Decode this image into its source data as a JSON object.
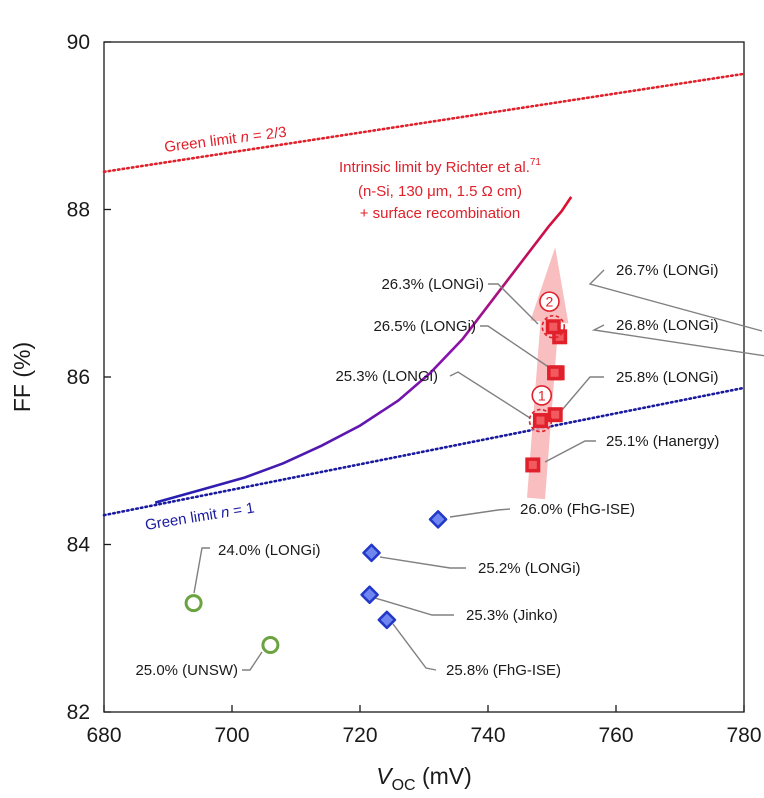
{
  "chart_data": {
    "type": "scatter",
    "xlabel": {
      "main": "V",
      "sub": "OC",
      "unit": " (mV)"
    },
    "ylabel": "FF (%)",
    "xlim": [
      680,
      780
    ],
    "ylim": [
      82,
      90
    ],
    "xticks": [
      680,
      700,
      720,
      740,
      760,
      780
    ],
    "yticks": [
      82,
      84,
      86,
      88,
      90
    ],
    "colors": {
      "red": "#e0202a",
      "blue": "#2238c8",
      "navy": "#1a1aa0",
      "green": "#6aa340",
      "arrow": "#f7b3b5",
      "leader": "#808080"
    },
    "lines": [
      {
        "name": "Green limit n = 2/3",
        "label": "Green limit ",
        "label_n": "n",
        "label_rest": " = 2/3",
        "style": "dotted",
        "color": "#e0202a",
        "points": [
          [
            680,
            88.45
          ],
          [
            780,
            89.62
          ]
        ]
      },
      {
        "name": "Green limit n = 1",
        "label": "Green limit ",
        "label_n": "n",
        "label_rest": " = 1",
        "style": "dotted",
        "color": "#1a1aa0",
        "points": [
          [
            680,
            84.35
          ],
          [
            780,
            85.87
          ]
        ]
      },
      {
        "name": "Intrinsic limit",
        "style": "solid",
        "color_start": "#2020b0",
        "color_end": "#e0102a",
        "points": [
          [
            688,
            84.5
          ],
          [
            695,
            84.65
          ],
          [
            702,
            84.8
          ],
          [
            708,
            84.97
          ],
          [
            714,
            85.18
          ],
          [
            720,
            85.42
          ],
          [
            726,
            85.72
          ],
          [
            731,
            86.05
          ],
          [
            736,
            86.45
          ],
          [
            740,
            86.85
          ],
          [
            744,
            87.25
          ],
          [
            747,
            87.55
          ],
          [
            749.5,
            87.8
          ],
          [
            751.5,
            87.98
          ],
          [
            753,
            88.15
          ]
        ]
      }
    ],
    "intrinsic_label": {
      "line1": "Intrinsic limit by Richter et al.",
      "line1_sup": "71",
      "line2": "(n-Si, 130 μm, 1.5 Ω cm)",
      "line3": "+ surface recombination"
    },
    "arrow": {
      "from": [
        747.5,
        84.55
      ],
      "to": [
        750.5,
        87.55
      ]
    },
    "points": [
      {
        "label": "26.7% (LONGi)",
        "x": 751.2,
        "y": 86.48,
        "marker": "square",
        "color": "#e0202a"
      },
      {
        "label": "26.8% (LONGi)",
        "x": 750.8,
        "y": 86.05,
        "marker": "square",
        "color": "#e0202a"
      },
      {
        "label": "26.3% (LONGi)",
        "x": 750.2,
        "y": 86.6,
        "marker": "square-dashed",
        "color": "#e0202a"
      },
      {
        "label": "26.5% (LONGi)",
        "x": 750.4,
        "y": 86.05,
        "marker": "square",
        "color": "#e0202a"
      },
      {
        "label": "25.8% (LONGi)",
        "x": 750.5,
        "y": 85.55,
        "marker": "square",
        "color": "#e0202a"
      },
      {
        "label": "25.3% (LONGi)",
        "x": 748.2,
        "y": 85.48,
        "marker": "square-dashed",
        "color": "#e0202a"
      },
      {
        "label": "25.1% (Hanergy)",
        "x": 747.0,
        "y": 84.95,
        "marker": "square",
        "color": "#e0202a"
      },
      {
        "label": "26.0% (FhG-ISE)",
        "x": 732.2,
        "y": 84.3,
        "marker": "diamond",
        "color": "#2238c8"
      },
      {
        "label": "25.2% (LONGi)",
        "x": 721.8,
        "y": 83.9,
        "marker": "diamond",
        "color": "#2238c8"
      },
      {
        "label": "25.3% (Jinko)",
        "x": 721.5,
        "y": 83.4,
        "marker": "diamond",
        "color": "#2238c8"
      },
      {
        "label": "25.8% (FhG-ISE)",
        "x": 724.2,
        "y": 83.1,
        "marker": "diamond",
        "color": "#2238c8"
      },
      {
        "label": "24.0% (LONGi)",
        "x": 694.0,
        "y": 83.3,
        "marker": "circle",
        "color": "#6aa340"
      },
      {
        "label": "25.0% (UNSW)",
        "x": 706.0,
        "y": 82.8,
        "marker": "circle",
        "color": "#6aa340"
      }
    ],
    "circled_numbers": [
      {
        "text": "1",
        "x": 748.4,
        "y": 85.78
      },
      {
        "text": "2",
        "x": 749.6,
        "y": 86.9
      }
    ]
  }
}
